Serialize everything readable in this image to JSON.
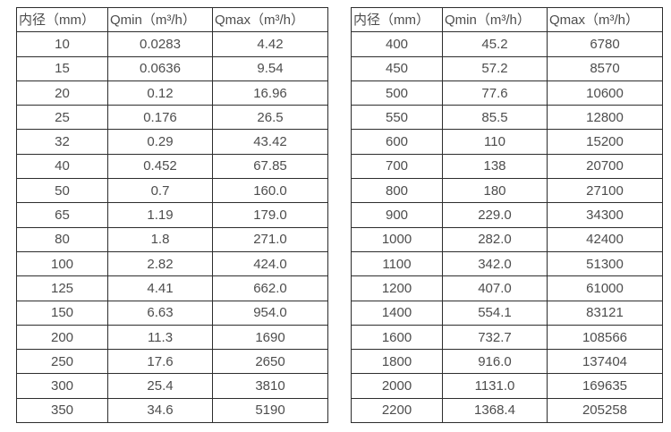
{
  "page": {
    "background": "#ffffff",
    "text_color": "#4d4d4d",
    "border_color": "#2d2d2d"
  },
  "tables": [
    {
      "name": "flow-spec-table-small-diameters",
      "headers": [
        "内径（mm）",
        "Qmin（m³/h）",
        "Qmax（m³/h）"
      ],
      "rows": [
        [
          "10",
          "0.0283",
          "4.42"
        ],
        [
          "15",
          "0.0636",
          "9.54"
        ],
        [
          "20",
          "0.12",
          "16.96"
        ],
        [
          "25",
          "0.176",
          "26.5"
        ],
        [
          "32",
          "0.29",
          "43.42"
        ],
        [
          "40",
          "0.452",
          "67.85"
        ],
        [
          "50",
          "0.7",
          "160.0"
        ],
        [
          "65",
          "1.19",
          "179.0"
        ],
        [
          "80",
          "1.8",
          "271.0"
        ],
        [
          "100",
          "2.82",
          "424.0"
        ],
        [
          "125",
          "4.41",
          "662.0"
        ],
        [
          "150",
          "6.63",
          "954.0"
        ],
        [
          "200",
          "11.3",
          "1690"
        ],
        [
          "250",
          "17.6",
          "2650"
        ],
        [
          "300",
          "25.4",
          "3810"
        ],
        [
          "350",
          "34.6",
          "5190"
        ]
      ]
    },
    {
      "name": "flow-spec-table-large-diameters",
      "headers": [
        "内径（mm）",
        "Qmin（m³/h）",
        "Qmax（m³/h）"
      ],
      "rows": [
        [
          "400",
          "45.2",
          "6780"
        ],
        [
          "450",
          "57.2",
          "8570"
        ],
        [
          "500",
          "77.6",
          "10600"
        ],
        [
          "550",
          "85.5",
          "12800"
        ],
        [
          "600",
          "110",
          "15200"
        ],
        [
          "700",
          "138",
          "20700"
        ],
        [
          "800",
          "180",
          "27100"
        ],
        [
          "900",
          "229.0",
          "34300"
        ],
        [
          "1000",
          "282.0",
          "42400"
        ],
        [
          "1100",
          "342.0",
          "51300"
        ],
        [
          "1200",
          "407.0",
          "61000"
        ],
        [
          "1400",
          "554.1",
          "83121"
        ],
        [
          "1600",
          "732.7",
          "108566"
        ],
        [
          "1800",
          "916.0",
          "137404"
        ],
        [
          "2000",
          "1131.0",
          "169635"
        ],
        [
          "2200",
          "1368.4",
          "205258"
        ]
      ]
    }
  ]
}
